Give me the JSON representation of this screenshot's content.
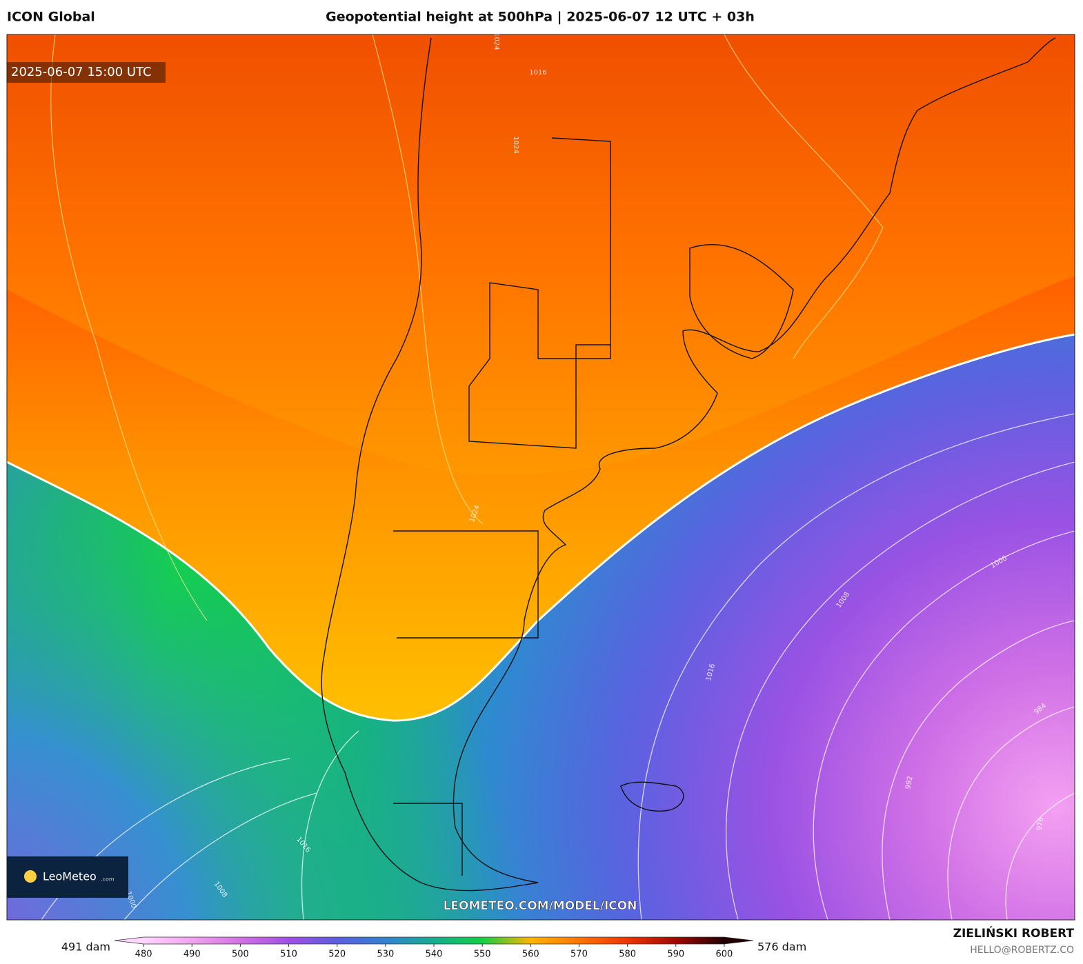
{
  "header": {
    "model": "ICON Global",
    "title": "Geopotential height at 500hPa | 2025-06-07 12 UTC + 03h"
  },
  "map": {
    "timestamp": "2025-06-07 15:00 UTC",
    "watermark": "LEOMETEO.COM/MODEL/ICON",
    "logo": {
      "name": "LeoMeteo",
      "suffix": ".com"
    },
    "contour_labels": [
      "1024",
      "1024",
      "1024",
      "1016",
      "1016",
      "1016",
      "1008",
      "1008",
      "1000",
      "1000",
      "992",
      "984",
      "976"
    ]
  },
  "colorbar": {
    "min_label": "491 dam",
    "max_label": "576 dam",
    "lim": [
      474,
      606
    ],
    "ticks": [
      480,
      490,
      500,
      510,
      520,
      530,
      540,
      550,
      560,
      570,
      580,
      590,
      600
    ],
    "colors": [
      "#ffd6ff",
      "#f2a2f0",
      "#d470e6",
      "#a050e4",
      "#5c5ee0",
      "#3282d2",
      "#14ae8e",
      "#12cf44",
      "#ffb400",
      "#ff7400",
      "#f03400",
      "#a00800",
      "#200000"
    ]
  },
  "credit": {
    "author": "ZIELIŃSKI ROBERT",
    "email": "HELLO@ROBERTZ.CO"
  }
}
